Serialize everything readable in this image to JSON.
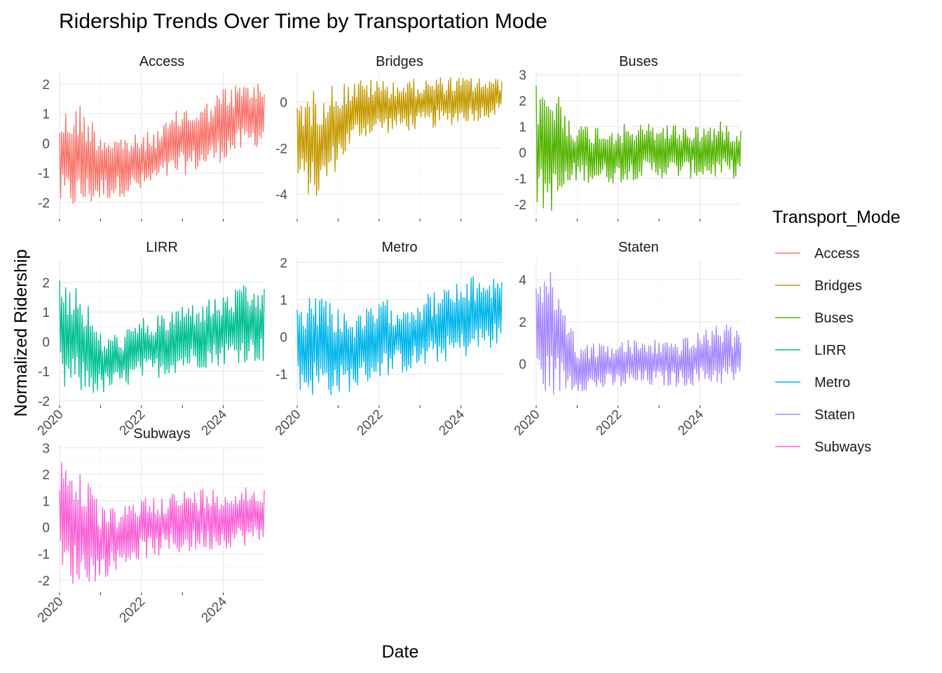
{
  "chart_data": {
    "type": "line",
    "title": "Ridership Trends Over Time by Transportation Mode",
    "xlabel": "Date",
    "ylabel": "Normalized Ridership",
    "legend": {
      "title": "Transport_Mode",
      "position": "right"
    },
    "x_ticks": [
      "2020",
      "2022",
      "2024"
    ],
    "xlim": [
      "2020-01-01",
      "2024-12-31"
    ],
    "grid": true,
    "facets": [
      {
        "name": "Access",
        "color": "#F8766D",
        "ylim": [
          -2.5,
          2.4
        ],
        "y_ticks": [
          -2,
          -1,
          0,
          1,
          2
        ],
        "series": {
          "x": [
            "2020-01",
            "2020-07",
            "2021-01",
            "2021-07",
            "2022-01",
            "2022-07",
            "2023-01",
            "2023-07",
            "2024-01",
            "2024-07",
            "2024-12"
          ],
          "low": [
            -2.2,
            -2.3,
            -2.0,
            -1.8,
            -1.7,
            -1.3,
            -1.1,
            -0.9,
            -0.6,
            -0.3,
            -0.1
          ],
          "high": [
            1.1,
            1.4,
            0.5,
            0.3,
            0.3,
            0.6,
            1.3,
            1.3,
            1.9,
            2.1,
            2.1
          ]
        }
      },
      {
        "name": "Bridges",
        "color": "#C49A00",
        "ylim": [
          -5.0,
          1.3
        ],
        "y_ticks": [
          -4,
          -2,
          0
        ],
        "series": {
          "x": [
            "2020-01",
            "2020-07",
            "2021-01",
            "2021-07",
            "2022-01",
            "2022-07",
            "2023-01",
            "2023-07",
            "2024-01",
            "2024-07",
            "2024-12"
          ],
          "low": [
            -3.6,
            -4.4,
            -2.8,
            -1.6,
            -1.4,
            -1.3,
            -1.2,
            -1.1,
            -0.9,
            -0.8,
            -0.5
          ],
          "high": [
            0.2,
            0.6,
            0.9,
            1.0,
            1.0,
            1.0,
            1.0,
            1.1,
            1.1,
            1.1,
            1.0
          ]
        }
      },
      {
        "name": "Buses",
        "color": "#53B400",
        "ylim": [
          -2.5,
          3.1
        ],
        "y_ticks": [
          -2,
          -1,
          0,
          1,
          2,
          3
        ],
        "series": {
          "x": [
            "2020-01",
            "2020-07",
            "2021-01",
            "2021-07",
            "2022-01",
            "2022-07",
            "2023-01",
            "2023-07",
            "2024-01",
            "2024-07",
            "2024-12"
          ],
          "low": [
            -2.3,
            -2.3,
            -1.1,
            -1.2,
            -1.2,
            -1.0,
            -1.0,
            -1.0,
            -1.0,
            -1.0,
            -1.0
          ],
          "high": [
            2.7,
            2.5,
            1.1,
            1.1,
            1.1,
            1.1,
            1.2,
            1.1,
            1.1,
            1.2,
            1.1
          ]
        }
      },
      {
        "name": "LIRR",
        "color": "#00C094",
        "ylim": [
          -2.1,
          2.8
        ],
        "y_ticks": [
          -2,
          -1,
          0,
          1,
          2
        ],
        "series": {
          "x": [
            "2020-01",
            "2020-07",
            "2021-01",
            "2021-07",
            "2022-01",
            "2022-07",
            "2023-01",
            "2023-07",
            "2024-01",
            "2024-07",
            "2024-12"
          ],
          "low": [
            -1.8,
            -1.8,
            -1.8,
            -1.6,
            -1.3,
            -1.2,
            -1.0,
            -0.9,
            -0.8,
            -0.7,
            -0.7
          ],
          "high": [
            2.5,
            1.9,
            0.3,
            0.3,
            0.8,
            0.9,
            1.3,
            1.4,
            1.6,
            1.9,
            1.8
          ]
        }
      },
      {
        "name": "Metro",
        "color": "#00B6EB",
        "ylim": [
          -1.8,
          2.1
        ],
        "y_ticks": [
          -1,
          0,
          1,
          2
        ],
        "series": {
          "x": [
            "2020-01",
            "2020-07",
            "2021-01",
            "2021-07",
            "2022-01",
            "2022-07",
            "2023-01",
            "2023-07",
            "2024-01",
            "2024-07",
            "2024-12"
          ],
          "low": [
            -1.6,
            -1.6,
            -1.6,
            -1.4,
            -1.1,
            -1.0,
            -0.9,
            -0.7,
            -0.6,
            -0.4,
            -0.3
          ],
          "high": [
            1.0,
            1.3,
            0.9,
            0.6,
            1.0,
            1.0,
            1.1,
            1.3,
            1.5,
            1.7,
            1.7
          ]
        }
      },
      {
        "name": "Staten",
        "color": "#A58AFF",
        "ylim": [
          -1.9,
          5.0
        ],
        "y_ticks": [
          0,
          2,
          4
        ],
        "series": {
          "x": [
            "2020-01",
            "2020-07",
            "2021-01",
            "2021-07",
            "2022-01",
            "2022-07",
            "2023-01",
            "2023-07",
            "2024-01",
            "2024-07",
            "2024-12"
          ],
          "low": [
            -1.5,
            -1.5,
            -1.3,
            -1.3,
            -1.2,
            -1.1,
            -1.1,
            -1.1,
            -1.0,
            -1.0,
            -1.0
          ],
          "high": [
            4.7,
            4.2,
            1.0,
            1.0,
            1.1,
            1.2,
            1.2,
            1.2,
            1.5,
            2.0,
            1.6
          ]
        }
      },
      {
        "name": "Subways",
        "color": "#FB61D7",
        "ylim": [
          -2.4,
          3.1
        ],
        "y_ticks": [
          -2,
          -1,
          0,
          1,
          2,
          3
        ],
        "series": {
          "x": [
            "2020-01",
            "2020-07",
            "2021-01",
            "2021-07",
            "2022-01",
            "2022-07",
            "2023-01",
            "2023-07",
            "2024-01",
            "2024-07",
            "2024-12"
          ],
          "low": [
            -2.1,
            -2.2,
            -2.0,
            -1.5,
            -1.2,
            -1.1,
            -1.0,
            -0.9,
            -0.8,
            -0.7,
            -0.7
          ],
          "high": [
            2.8,
            2.3,
            0.8,
            0.7,
            1.2,
            1.3,
            1.4,
            1.5,
            1.5,
            1.6,
            1.6
          ]
        }
      }
    ]
  }
}
